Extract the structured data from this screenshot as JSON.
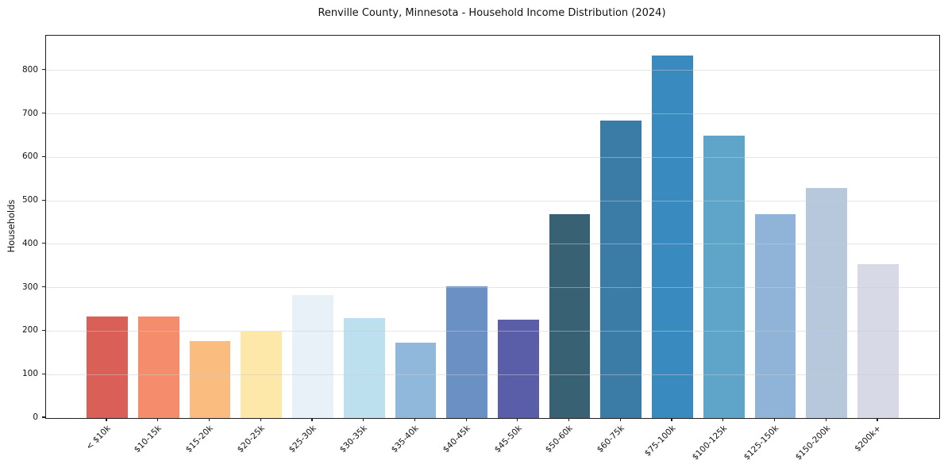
{
  "chart_data": {
    "type": "bar",
    "title": "Renville County, Minnesota - Household Income Distribution (2024)",
    "xlabel": "",
    "ylabel": "Households",
    "categories": [
      "< $10k",
      "$10-15k",
      "$15-20k",
      "$20-25k",
      "$25-30k",
      "$30-35k",
      "$35-40k",
      "$40-45k",
      "$45-50k",
      "$50-60k",
      "$60-75k",
      "$75-100k",
      "$100-125k",
      "$125-150k",
      "$150-200k",
      "$200k+"
    ],
    "values": [
      233,
      233,
      178,
      199,
      283,
      231,
      174,
      304,
      226,
      470,
      685,
      834,
      650,
      470,
      530,
      355
    ],
    "bar_colors": [
      "#d95f57",
      "#f58d6c",
      "#fbbc7f",
      "#fde8a9",
      "#e8f1f8",
      "#bde0ee",
      "#90b8da",
      "#6b90c4",
      "#5a5ea9",
      "#386173",
      "#3a7ca5",
      "#388abf",
      "#5fa4c9",
      "#90b4d7",
      "#b7c8dd",
      "#d8d9e6"
    ],
    "yticks": [
      0,
      100,
      200,
      300,
      400,
      500,
      600,
      700,
      800
    ],
    "ylim": [
      0,
      880
    ],
    "grid": "horizontal",
    "legend": "none",
    "background_color": "#ffffff",
    "spine_color": "#202020"
  }
}
